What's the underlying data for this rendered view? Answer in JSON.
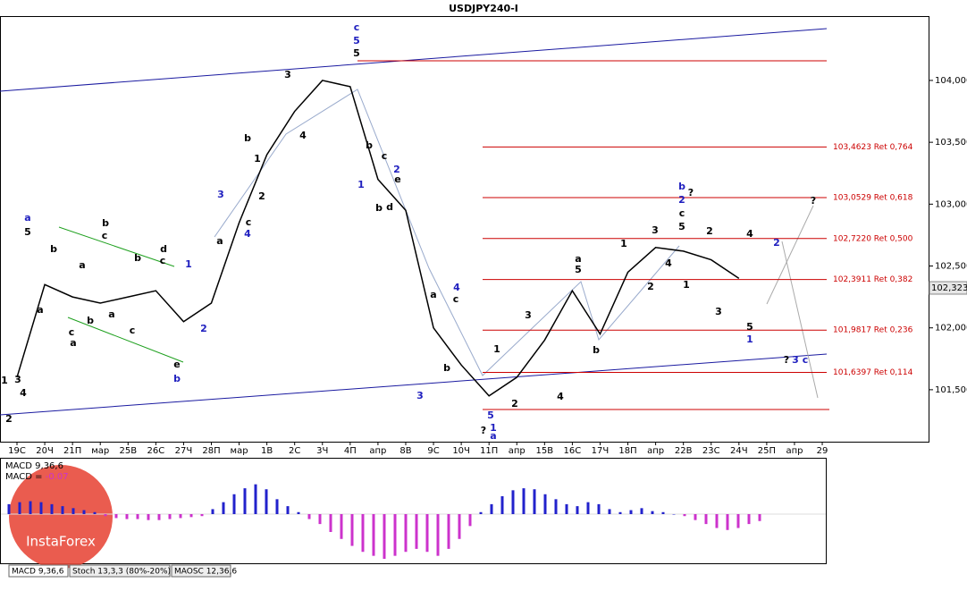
{
  "chart_data": {
    "type": "line",
    "title": "USDJPY240-I",
    "categories": [
      "19С",
      "20Ч",
      "21П",
      "мар",
      "25В",
      "26С",
      "27Ч",
      "28П",
      "мар",
      "1В",
      "2С",
      "3Ч",
      "4П",
      "апр",
      "8В",
      "9С",
      "10Ч",
      "11П",
      "апр",
      "15В",
      "16С",
      "17Ч",
      "18П",
      "апр",
      "22В",
      "23С",
      "24Ч",
      "25П",
      "апр",
      "29"
    ],
    "series": [
      {
        "color": "#000000",
        "values": [
          101.6,
          102.35,
          102.25,
          102.2,
          102.25,
          102.3,
          102.05,
          102.2,
          102.85,
          103.4,
          103.75,
          104.0,
          103.95,
          103.2,
          102.95,
          102.0,
          101.7,
          101.45,
          101.6,
          101.9,
          102.3,
          101.95,
          102.45,
          102.65,
          102.62,
          102.55,
          102.4,
          null,
          null,
          null
        ]
      }
    ],
    "ylim": [
      101.08,
      104.52
    ],
    "yticks": [
      {
        "value": 104.0,
        "label": "104,000"
      },
      {
        "value": 103.5,
        "label": "103,500"
      },
      {
        "value": 103.0,
        "label": "103,000"
      },
      {
        "value": 102.5,
        "label": "102,500"
      },
      {
        "value": 102.0,
        "label": "102,000"
      },
      {
        "value": 101.5,
        "label": "101,500"
      }
    ],
    "current_price": {
      "value": 102.323,
      "label": "102,323"
    },
    "levels": {
      "color": "#cc0000",
      "items": [
        {
          "value": 103.4623,
          "label": "103,4623 Ret 0,764"
        },
        {
          "value": 103.0529,
          "label": "103,0529 Ret 0,618"
        },
        {
          "value": 102.722,
          "label": "102,7220 Ret 0,500"
        },
        {
          "value": 102.3911,
          "label": "102,3911 Ret 0,382"
        },
        {
          "value": 101.9817,
          "label": "101,9817 Ret 0,236"
        },
        {
          "value": 101.6397,
          "label": "101,6397 Ret 0,114"
        }
      ]
    },
    "annotations": [
      {
        "color": "#000000",
        "labels": [
          "5",
          "3",
          "4",
          "b",
          "1",
          "2",
          "c",
          "a",
          "d",
          "c",
          "e",
          "b",
          "c",
          "a",
          "b",
          "a",
          "c",
          "a",
          "b",
          "a",
          "b",
          "c",
          "5",
          "3",
          "4",
          "1",
          "2",
          "b",
          "c",
          "e",
          "b",
          "d",
          "a",
          "c",
          "b",
          "1",
          "2",
          "?",
          "3",
          "4",
          "a",
          "5",
          "b",
          "1",
          "2",
          "3",
          "4",
          "?",
          "c",
          "5",
          "1",
          "2",
          "3",
          "4",
          "5",
          "?",
          "?"
        ]
      },
      {
        "color": "#1f1fbf",
        "labels": [
          "c",
          "5",
          "3",
          "4",
          "2",
          "1",
          "b",
          "a",
          "1",
          "2",
          "4",
          "3",
          "5",
          "1",
          "a",
          "b",
          "2",
          "1",
          "2",
          "3",
          "c"
        ]
      }
    ],
    "indicator": {
      "type": "bar",
      "title": "MACD 9,36,6",
      "value_label": "MACD = ",
      "value": -0.07,
      "pos_color": "#2222cc",
      "neg_color": "#cc33cc",
      "values": [
        0.1,
        0.12,
        0.13,
        0.12,
        0.1,
        0.08,
        0.06,
        0.04,
        0.02,
        -0.02,
        -0.04,
        -0.05,
        -0.05,
        -0.06,
        -0.06,
        -0.05,
        -0.04,
        -0.03,
        -0.02,
        0.05,
        0.12,
        0.2,
        0.26,
        0.3,
        0.25,
        0.15,
        0.08,
        0.02,
        -0.05,
        -0.1,
        -0.18,
        -0.25,
        -0.32,
        -0.38,
        -0.42,
        -0.45,
        -0.42,
        -0.38,
        -0.35,
        -0.38,
        -0.42,
        -0.35,
        -0.25,
        -0.12,
        0.02,
        0.1,
        0.18,
        0.24,
        0.26,
        0.25,
        0.2,
        0.15,
        0.1,
        0.08,
        0.12,
        0.1,
        0.05,
        0.02,
        0.04,
        0.06,
        0.03,
        0.02,
        0.0,
        -0.02,
        -0.06,
        -0.1,
        -0.14,
        -0.16,
        -0.14,
        -0.1,
        -0.07
      ]
    },
    "tabs": [
      "MACD 9,36,6",
      "Stoch 13,3,3 (80%-20%)",
      "MAOSC 12,36,6"
    ],
    "watermark": "InstaForex"
  }
}
